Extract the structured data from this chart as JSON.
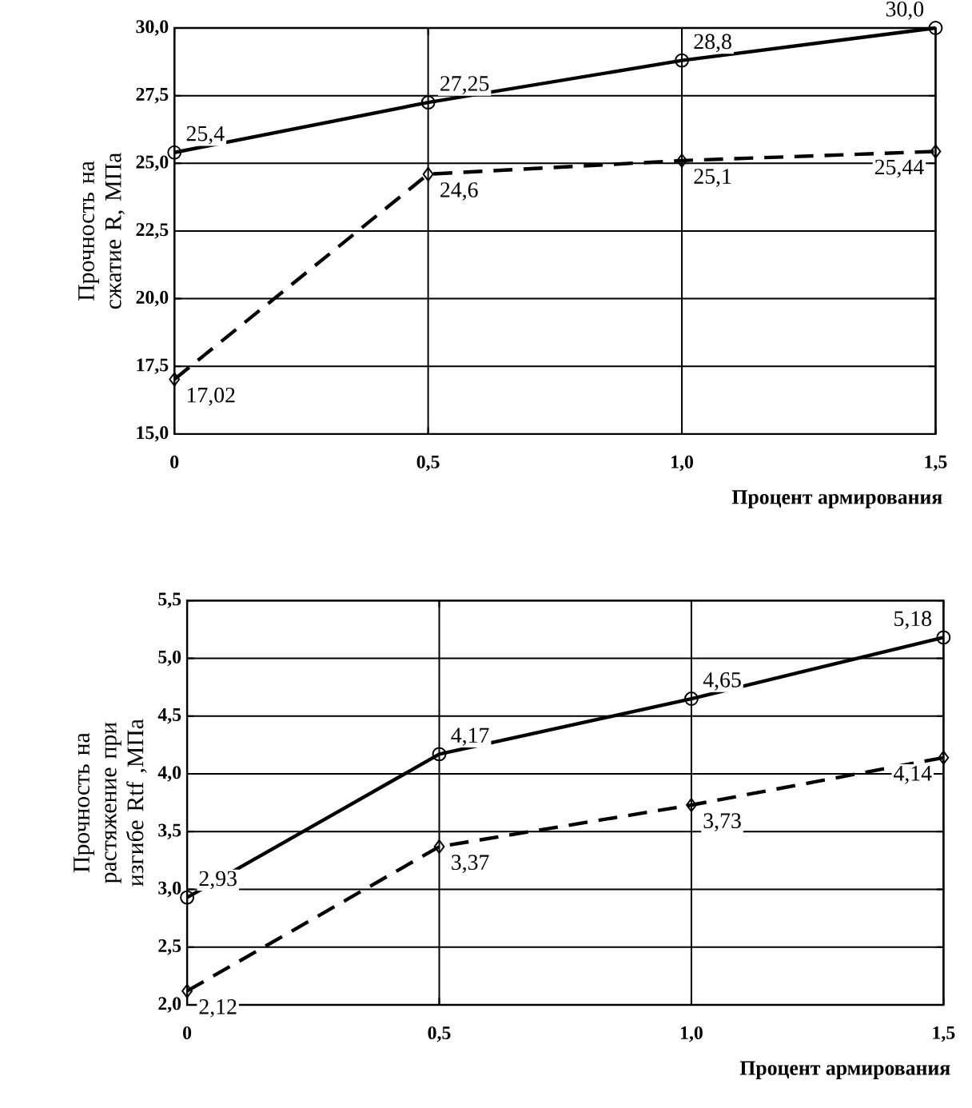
{
  "chart_data": [
    {
      "type": "line",
      "ylabel": "Прочность на сжатие R, МПа",
      "xlabel": "Процент армирования",
      "x": [
        0,
        0.5,
        1.0,
        1.5
      ],
      "series": [
        {
          "color": "#000000",
          "marker": "circle",
          "line_style": "solid",
          "values": [
            25.4,
            27.25,
            28.8,
            30.0
          ],
          "value_labels": [
            "25,4",
            "27,25",
            "28,8",
            "30,0"
          ]
        },
        {
          "color": "#000000",
          "marker": "diamond",
          "line_style": "dashed",
          "values": [
            17.02,
            24.6,
            25.1,
            25.44
          ],
          "value_labels": [
            "17,02",
            "24,6",
            "25,1",
            "25,44"
          ]
        }
      ],
      "xlim": [
        0,
        1.5
      ],
      "ylim": [
        15,
        30
      ],
      "xticks": [
        0,
        {
          "value": 0.5,
          "label": "0,5"
        },
        {
          "value": 1.0,
          "label": "1,0"
        },
        {
          "value": 1.5,
          "label": "1,5"
        }
      ],
      "yticks": [
        {
          "value": 15,
          "label": "15,0"
        },
        {
          "value": 17.5,
          "label": "17,5"
        },
        {
          "value": 20,
          "label": "20,0"
        },
        {
          "value": 22.5,
          "label": "22,5"
        },
        {
          "value": 25,
          "label": "25,0"
        },
        {
          "value": 27.5,
          "label": "27,5"
        },
        {
          "value": 30,
          "label": "30,0"
        }
      ],
      "grid": true
    },
    {
      "type": "line",
      "ylabel": "Прочность на растяжение при изгибе Rtf ,МПа",
      "xlabel": "Процент армирования",
      "x": [
        0,
        0.5,
        1.0,
        1.5
      ],
      "series": [
        {
          "color": "#000000",
          "marker": "circle",
          "line_style": "solid",
          "values": [
            2.93,
            4.17,
            4.65,
            5.18
          ],
          "value_labels": [
            "2,93",
            "4,17",
            "4,65",
            "5,18"
          ]
        },
        {
          "color": "#000000",
          "marker": "diamond",
          "line_style": "dashed",
          "values": [
            2.12,
            3.37,
            3.73,
            4.14
          ],
          "value_labels": [
            "2,12",
            "3,37",
            "3,73",
            "4,14"
          ]
        }
      ],
      "xlim": [
        0,
        1.5
      ],
      "ylim": [
        2,
        5.5
      ],
      "xticks": [
        0,
        {
          "value": 0.5,
          "label": "0,5"
        },
        {
          "value": 1.0,
          "label": "1,0"
        },
        {
          "value": 1.5,
          "label": "1,5"
        }
      ],
      "yticks": [
        {
          "value": 2,
          "label": "2,0"
        },
        {
          "value": 2.5,
          "label": "2,5"
        },
        {
          "value": 3,
          "label": "3,0"
        },
        {
          "value": 3.5,
          "label": "3,5"
        },
        {
          "value": 4,
          "label": "4,0"
        },
        {
          "value": 4.5,
          "label": "4,5"
        },
        {
          "value": 5,
          "label": "5,0"
        },
        {
          "value": 5.5,
          "label": "5,5"
        }
      ],
      "grid": true
    }
  ]
}
